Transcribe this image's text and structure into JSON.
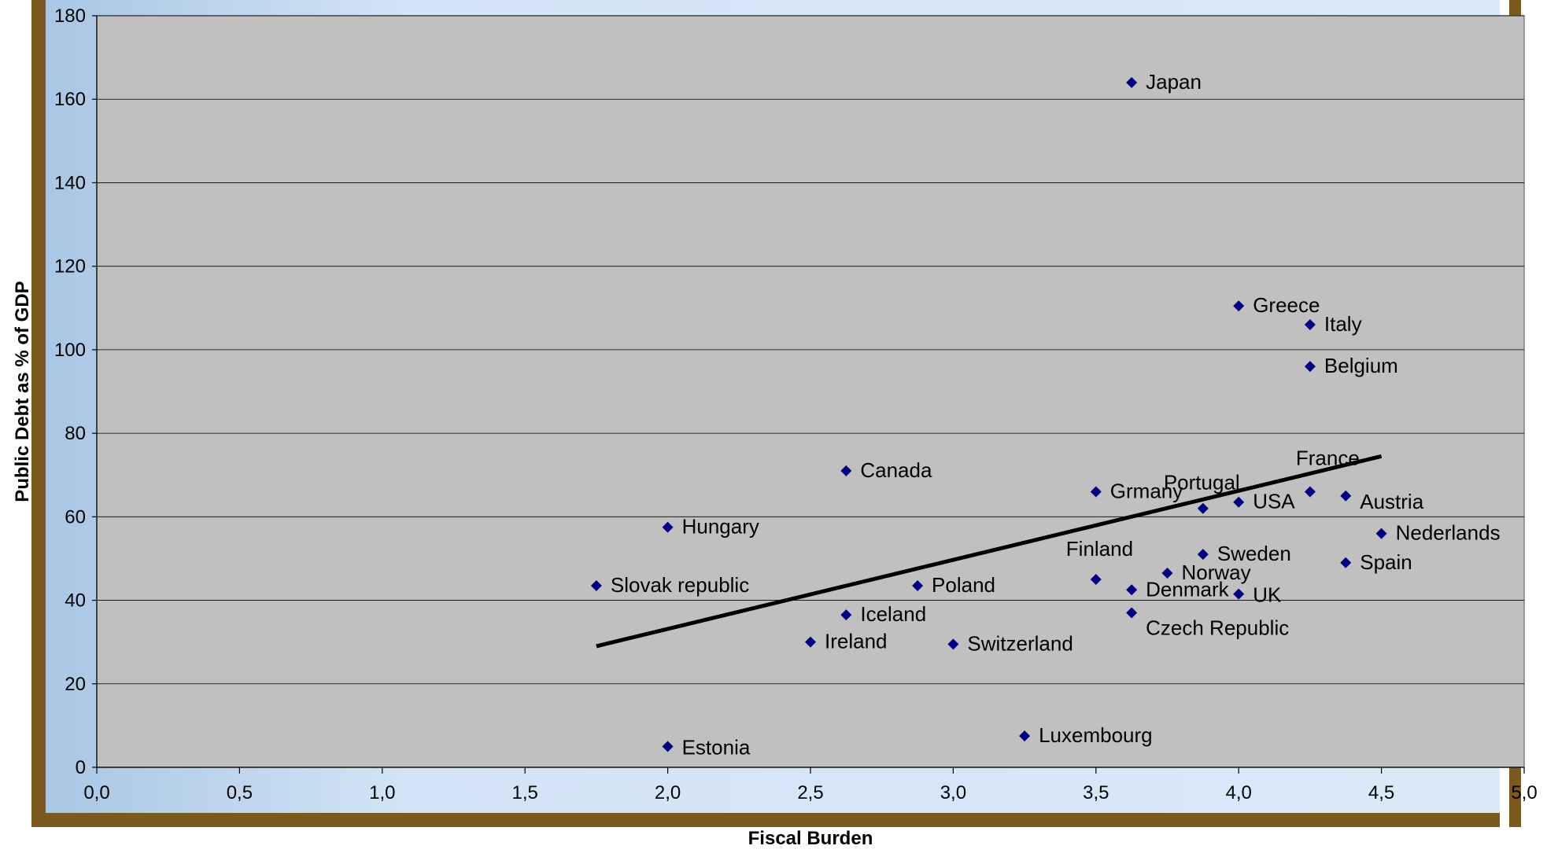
{
  "chart_data": {
    "type": "scatter",
    "title": "",
    "xlabel": "Fiscal Burden",
    "ylabel": "Public Debt as % of GDP",
    "xlim": [
      0,
      5
    ],
    "ylim": [
      0,
      180
    ],
    "x_ticks": [
      "0,0",
      "0,5",
      "1,0",
      "1,5",
      "2,0",
      "2,5",
      "3,0",
      "3,5",
      "4,0",
      "4,5",
      "5,0"
    ],
    "x_tick_values": [
      0,
      0.5,
      1,
      1.5,
      2,
      2.5,
      3,
      3.5,
      4,
      4.5,
      5
    ],
    "y_ticks": [
      "0",
      "20",
      "40",
      "60",
      "80",
      "100",
      "120",
      "140",
      "160",
      "180"
    ],
    "y_tick_values": [
      0,
      20,
      40,
      60,
      80,
      100,
      120,
      140,
      160,
      180
    ],
    "grid": "horizontal",
    "legend": "none",
    "marker_color": "#000080",
    "plot_background": "#c0c0c0",
    "frame_color": "#7a5a1e",
    "points": [
      {
        "label": "Japan",
        "x": 3.625,
        "y": 164
      },
      {
        "label": "Greece",
        "x": 4.0,
        "y": 110.5
      },
      {
        "label": "Italy",
        "x": 4.25,
        "y": 106
      },
      {
        "label": "Belgium",
        "x": 4.25,
        "y": 96
      },
      {
        "label": "Canada",
        "x": 2.625,
        "y": 71
      },
      {
        "label": "Grmany",
        "x": 3.5,
        "y": 66
      },
      {
        "label": "France",
        "x": 4.25,
        "y": 66
      },
      {
        "label": "Austria",
        "x": 4.375,
        "y": 65
      },
      {
        "label": "USA",
        "x": 4.0,
        "y": 63.5
      },
      {
        "label": "Portugal",
        "x": 3.875,
        "y": 62
      },
      {
        "label": "Hungary",
        "x": 2.0,
        "y": 57.5
      },
      {
        "label": "Nederlands",
        "x": 4.5,
        "y": 56
      },
      {
        "label": "Sweden",
        "x": 3.875,
        "y": 51
      },
      {
        "label": "Spain",
        "x": 4.375,
        "y": 49
      },
      {
        "label": "Norway",
        "x": 3.75,
        "y": 46.5
      },
      {
        "label": "Finland",
        "x": 3.5,
        "y": 45
      },
      {
        "label": "Slovak republic",
        "x": 1.75,
        "y": 43.5
      },
      {
        "label": "Poland",
        "x": 2.875,
        "y": 43.5
      },
      {
        "label": "Denmark",
        "x": 3.625,
        "y": 42.5
      },
      {
        "label": "UK",
        "x": 4.0,
        "y": 41.5
      },
      {
        "label": "Iceland",
        "x": 2.625,
        "y": 36.5
      },
      {
        "label": "Czech Republic",
        "x": 3.625,
        "y": 37
      },
      {
        "label": "Ireland",
        "x": 2.5,
        "y": 30
      },
      {
        "label": "Switzerland",
        "x": 3.0,
        "y": 29.5
      },
      {
        "label": "Luxembourg",
        "x": 3.25,
        "y": 7.5
      },
      {
        "label": "Estonia",
        "x": 2.0,
        "y": 5
      }
    ],
    "trendline": {
      "x": [
        1.75,
        4.5
      ],
      "y": [
        29,
        74.5
      ],
      "color": "#000000"
    }
  }
}
